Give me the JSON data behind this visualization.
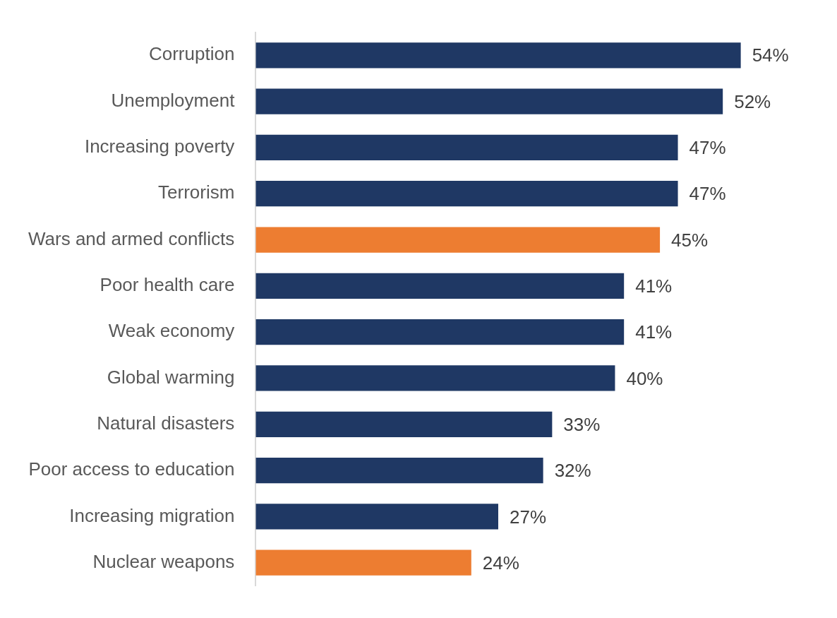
{
  "chart_data": {
    "type": "bar",
    "orientation": "horizontal",
    "categories": [
      "Corruption",
      "Unemployment",
      "Increasing poverty",
      "Terrorism",
      "Wars and armed conflicts",
      "Poor health care",
      "Weak economy",
      "Global warming",
      "Natural disasters",
      "Poor access to education",
      "Increasing migration",
      "Nuclear weapons"
    ],
    "values": [
      54,
      52,
      47,
      47,
      45,
      41,
      41,
      40,
      33,
      32,
      27,
      24
    ],
    "colors": [
      "#1f3864",
      "#1f3864",
      "#1f3864",
      "#1f3864",
      "#ed7d31",
      "#1f3864",
      "#1f3864",
      "#1f3864",
      "#1f3864",
      "#1f3864",
      "#1f3864",
      "#ed7d31"
    ],
    "value_labels": [
      "54%",
      "52%",
      "47%",
      "47%",
      "45%",
      "41%",
      "41%",
      "40%",
      "33%",
      "32%",
      "27%",
      "24%"
    ],
    "grid": false,
    "legend": false,
    "tick_labels": "y"
  }
}
